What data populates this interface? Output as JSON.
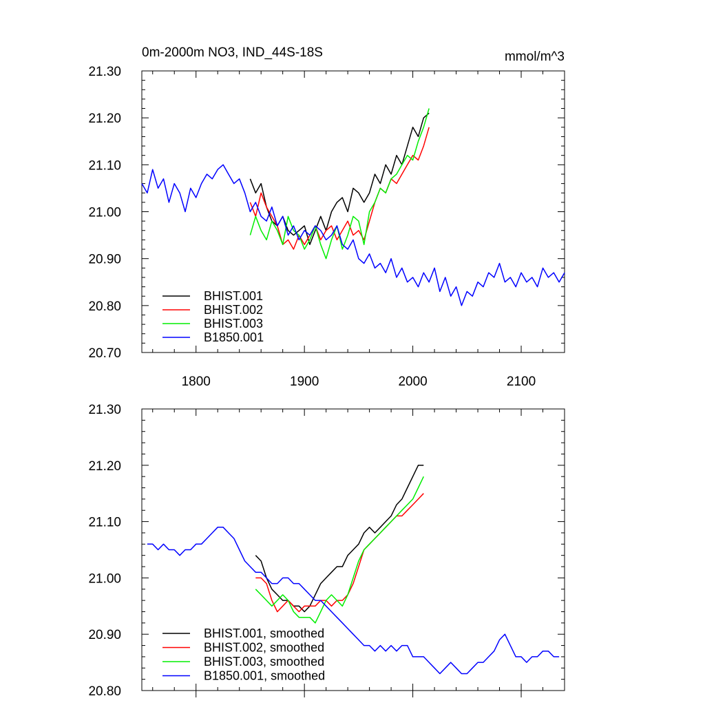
{
  "chart_data": [
    {
      "type": "line",
      "title": "0m-2000m NO3, IND_44S-18S",
      "units": "mmol/m^3",
      "xlim": [
        1750,
        2140
      ],
      "ylim": [
        20.7,
        21.3
      ],
      "x_ticks": [
        1800,
        1900,
        2000,
        2100
      ],
      "x_tick_labels": [
        "1800",
        "1900",
        "2000",
        "2100"
      ],
      "y_ticks": [
        20.7,
        20.8,
        20.9,
        21.0,
        21.1,
        21.2,
        21.3
      ],
      "y_tick_labels": [
        "20.70",
        "20.80",
        "20.90",
        "21.00",
        "21.10",
        "21.20",
        "21.30"
      ],
      "legend_position": "bottom-left",
      "series": [
        {
          "name": "BHIST.001",
          "color": "#000000",
          "x": [
            1850,
            1855,
            1860,
            1865,
            1870,
            1875,
            1880,
            1885,
            1890,
            1895,
            1900,
            1905,
            1910,
            1915,
            1920,
            1925,
            1930,
            1935,
            1940,
            1945,
            1950,
            1955,
            1960,
            1965,
            1970,
            1975,
            1980,
            1985,
            1990,
            1995,
            2000,
            2005,
            2010,
            2015
          ],
          "y": [
            21.07,
            21.04,
            21.06,
            21.01,
            20.98,
            20.97,
            20.99,
            20.96,
            20.95,
            20.96,
            20.97,
            20.93,
            20.96,
            20.99,
            20.96,
            21.0,
            21.02,
            21.03,
            21.0,
            21.05,
            21.04,
            21.02,
            21.04,
            21.08,
            21.06,
            21.1,
            21.08,
            21.12,
            21.1,
            21.14,
            21.18,
            21.16,
            21.2,
            21.21
          ]
        },
        {
          "name": "BHIST.002",
          "color": "#ff0000",
          "x": [
            1850,
            1855,
            1860,
            1865,
            1870,
            1875,
            1880,
            1885,
            1890,
            1895,
            1900,
            1905,
            1910,
            1915,
            1920,
            1925,
            1930,
            1935,
            1940,
            1945,
            1950,
            1955,
            1960,
            1965,
            1970,
            1975,
            1980,
            1985,
            1990,
            1995,
            2000,
            2005,
            2010,
            2015
          ],
          "y": [
            21.02,
            20.99,
            21.04,
            21.01,
            20.99,
            20.97,
            20.93,
            20.94,
            20.92,
            20.95,
            20.93,
            20.95,
            20.97,
            20.94,
            20.96,
            20.97,
            20.94,
            20.96,
            20.98,
            20.95,
            20.96,
            20.94,
            20.98,
            21.02,
            21.05,
            21.04,
            21.07,
            21.06,
            21.08,
            21.1,
            21.12,
            21.11,
            21.14,
            21.18
          ]
        },
        {
          "name": "BHIST.003",
          "color": "#00ee00",
          "x": [
            1850,
            1855,
            1860,
            1865,
            1870,
            1875,
            1880,
            1885,
            1890,
            1895,
            1900,
            1905,
            1910,
            1915,
            1920,
            1925,
            1930,
            1935,
            1940,
            1945,
            1950,
            1955,
            1960,
            1965,
            1970,
            1975,
            1980,
            1985,
            1990,
            1995,
            2000,
            2005,
            2010,
            2015
          ],
          "y": [
            20.95,
            20.99,
            20.96,
            20.94,
            20.98,
            20.96,
            20.93,
            20.99,
            20.96,
            20.95,
            20.92,
            20.94,
            20.97,
            20.93,
            20.9,
            20.94,
            20.97,
            20.92,
            20.95,
            20.99,
            20.98,
            20.93,
            21.0,
            21.02,
            21.05,
            21.04,
            21.07,
            21.08,
            21.1,
            21.12,
            21.11,
            21.15,
            21.18,
            21.22
          ]
        },
        {
          "name": "B1850.001",
          "color": "#0000ff",
          "x": [
            1750,
            1755,
            1760,
            1765,
            1770,
            1775,
            1780,
            1785,
            1790,
            1795,
            1800,
            1805,
            1810,
            1815,
            1820,
            1825,
            1830,
            1835,
            1840,
            1845,
            1850,
            1855,
            1860,
            1865,
            1870,
            1875,
            1880,
            1885,
            1890,
            1895,
            1900,
            1905,
            1910,
            1915,
            1920,
            1925,
            1930,
            1935,
            1940,
            1945,
            1950,
            1955,
            1960,
            1965,
            1970,
            1975,
            1980,
            1985,
            1990,
            1995,
            2000,
            2005,
            2010,
            2015,
            2020,
            2025,
            2030,
            2035,
            2040,
            2045,
            2050,
            2055,
            2060,
            2065,
            2070,
            2075,
            2080,
            2085,
            2090,
            2095,
            2100,
            2105,
            2110,
            2115,
            2120,
            2125,
            2130,
            2135,
            2140
          ],
          "y": [
            21.06,
            21.04,
            21.09,
            21.05,
            21.07,
            21.02,
            21.06,
            21.04,
            21.0,
            21.05,
            21.03,
            21.06,
            21.08,
            21.07,
            21.09,
            21.1,
            21.08,
            21.06,
            21.07,
            21.04,
            21.0,
            21.02,
            20.99,
            20.98,
            21.01,
            20.97,
            20.99,
            20.95,
            20.97,
            20.94,
            20.96,
            20.95,
            20.97,
            20.96,
            20.94,
            20.95,
            20.97,
            20.93,
            20.92,
            20.94,
            20.9,
            20.89,
            20.91,
            20.88,
            20.89,
            20.87,
            20.9,
            20.86,
            20.88,
            20.85,
            20.86,
            20.84,
            20.87,
            20.85,
            20.88,
            20.83,
            20.86,
            20.82,
            20.84,
            20.8,
            20.83,
            20.82,
            20.85,
            20.84,
            20.87,
            20.86,
            20.89,
            20.85,
            20.86,
            20.84,
            20.87,
            20.85,
            20.86,
            20.84,
            20.88,
            20.86,
            20.87,
            20.85,
            20.87
          ]
        }
      ]
    },
    {
      "type": "line",
      "xlim": [
        1750,
        2140
      ],
      "ylim": [
        20.8,
        21.3
      ],
      "x_ticks": [
        1800,
        1900,
        2000,
        2100
      ],
      "y_ticks": [
        20.8,
        20.9,
        21.0,
        21.1,
        21.2,
        21.3
      ],
      "y_tick_labels": [
        "20.80",
        "20.90",
        "21.00",
        "21.10",
        "21.20",
        "21.30"
      ],
      "legend_position": "bottom-left",
      "series": [
        {
          "name": "BHIST.001, smoothed",
          "color": "#000000",
          "x": [
            1855,
            1860,
            1865,
            1870,
            1875,
            1880,
            1885,
            1890,
            1895,
            1900,
            1905,
            1910,
            1915,
            1920,
            1925,
            1930,
            1935,
            1940,
            1945,
            1950,
            1955,
            1960,
            1965,
            1970,
            1975,
            1980,
            1985,
            1990,
            1995,
            2000,
            2005,
            2010
          ],
          "y": [
            21.04,
            21.03,
            21.0,
            20.98,
            20.97,
            20.96,
            20.96,
            20.95,
            20.95,
            20.94,
            20.95,
            20.97,
            20.99,
            21.0,
            21.01,
            21.02,
            21.02,
            21.04,
            21.05,
            21.06,
            21.08,
            21.09,
            21.08,
            21.09,
            21.1,
            21.11,
            21.13,
            21.14,
            21.16,
            21.18,
            21.2,
            21.2
          ]
        },
        {
          "name": "BHIST.002, smoothed",
          "color": "#ff0000",
          "x": [
            1855,
            1860,
            1865,
            1870,
            1875,
            1880,
            1885,
            1890,
            1895,
            1900,
            1905,
            1910,
            1915,
            1920,
            1925,
            1930,
            1935,
            1940,
            1945,
            1950,
            1955,
            1960,
            1965,
            1970,
            1975,
            1980,
            1985,
            1990,
            1995,
            2000,
            2005,
            2010
          ],
          "y": [
            21.0,
            21.0,
            20.99,
            20.96,
            20.94,
            20.95,
            20.96,
            20.95,
            20.94,
            20.95,
            20.95,
            20.95,
            20.96,
            20.96,
            20.95,
            20.96,
            20.96,
            20.97,
            20.99,
            21.02,
            21.05,
            21.06,
            21.07,
            21.08,
            21.09,
            21.1,
            21.11,
            21.11,
            21.12,
            21.13,
            21.14,
            21.15
          ]
        },
        {
          "name": "BHIST.003, smoothed",
          "color": "#00ee00",
          "x": [
            1855,
            1860,
            1865,
            1870,
            1875,
            1880,
            1885,
            1890,
            1895,
            1900,
            1905,
            1910,
            1915,
            1920,
            1925,
            1930,
            1935,
            1940,
            1945,
            1950,
            1955,
            1960,
            1965,
            1970,
            1975,
            1980,
            1985,
            1990,
            1995,
            2000,
            2005,
            2010
          ],
          "y": [
            20.98,
            20.97,
            20.96,
            20.95,
            20.96,
            20.97,
            20.96,
            20.94,
            20.93,
            20.93,
            20.93,
            20.92,
            20.94,
            20.96,
            20.97,
            20.96,
            20.95,
            20.97,
            21.0,
            21.03,
            21.05,
            21.06,
            21.07,
            21.08,
            21.09,
            21.1,
            21.11,
            21.12,
            21.13,
            21.14,
            21.16,
            21.18
          ]
        },
        {
          "name": "B1850.001, smoothed",
          "color": "#0000ff",
          "x": [
            1755,
            1760,
            1765,
            1770,
            1775,
            1780,
            1785,
            1790,
            1795,
            1800,
            1805,
            1810,
            1815,
            1820,
            1825,
            1830,
            1835,
            1840,
            1845,
            1850,
            1855,
            1860,
            1865,
            1870,
            1875,
            1880,
            1885,
            1890,
            1895,
            1900,
            1905,
            1910,
            1915,
            1920,
            1925,
            1930,
            1935,
            1940,
            1945,
            1950,
            1955,
            1960,
            1965,
            1970,
            1975,
            1980,
            1985,
            1990,
            1995,
            2000,
            2005,
            2010,
            2015,
            2020,
            2025,
            2030,
            2035,
            2040,
            2045,
            2050,
            2055,
            2060,
            2065,
            2070,
            2075,
            2080,
            2085,
            2090,
            2095,
            2100,
            2105,
            2110,
            2115,
            2120,
            2125,
            2130,
            2135
          ],
          "y": [
            21.06,
            21.06,
            21.05,
            21.06,
            21.05,
            21.05,
            21.04,
            21.05,
            21.05,
            21.06,
            21.06,
            21.07,
            21.08,
            21.09,
            21.09,
            21.08,
            21.07,
            21.05,
            21.03,
            21.02,
            21.01,
            21.01,
            21.0,
            20.99,
            20.99,
            21.0,
            21.0,
            20.99,
            20.99,
            20.98,
            20.97,
            20.96,
            20.96,
            20.95,
            20.94,
            20.93,
            20.92,
            20.91,
            20.9,
            20.89,
            20.88,
            20.88,
            20.87,
            20.88,
            20.87,
            20.88,
            20.87,
            20.88,
            20.88,
            20.86,
            20.86,
            20.86,
            20.85,
            20.84,
            20.83,
            20.84,
            20.85,
            20.84,
            20.83,
            20.83,
            20.84,
            20.85,
            20.85,
            20.86,
            20.87,
            20.89,
            20.9,
            20.88,
            20.86,
            20.86,
            20.85,
            20.86,
            20.86,
            20.87,
            20.87,
            20.86,
            20.86
          ]
        }
      ]
    }
  ]
}
